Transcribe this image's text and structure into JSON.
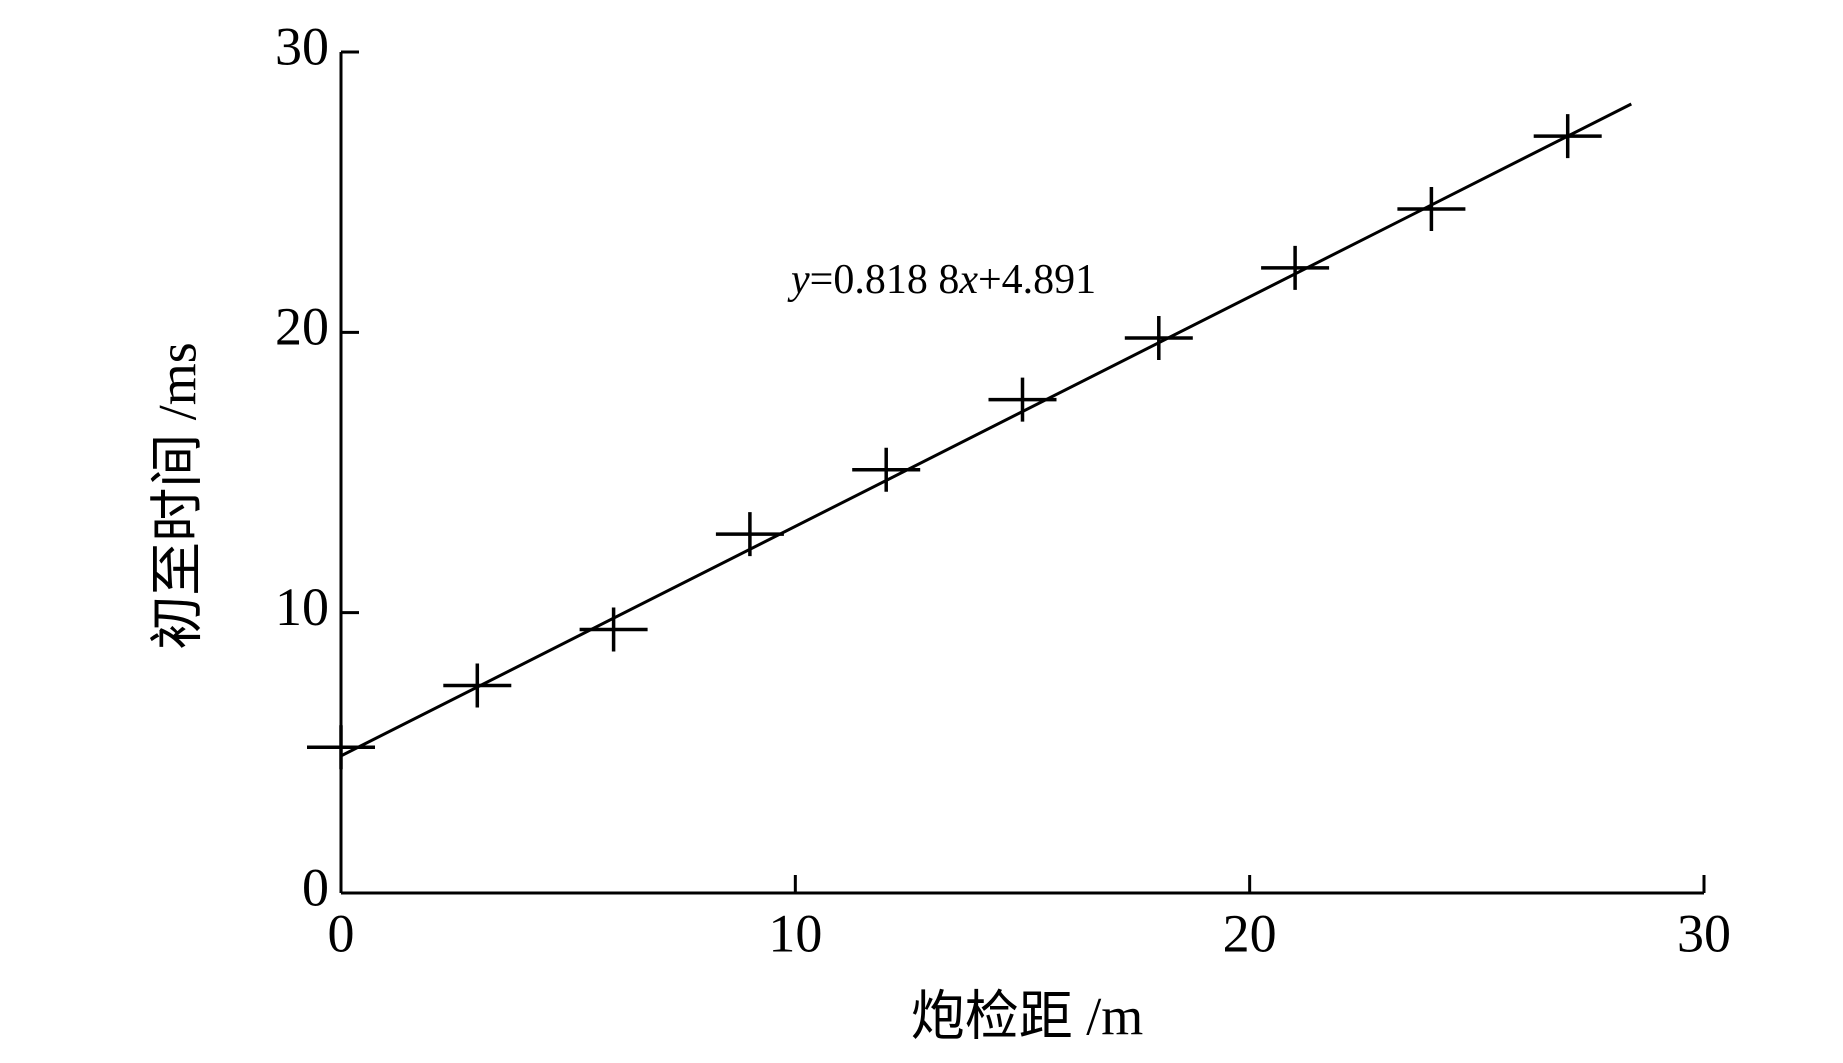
{
  "chart_data": {
    "type": "scatter",
    "x_label": "炮检距 /m",
    "y_label": "初至时间 /ms",
    "x": [
      0,
      3,
      6,
      9,
      12,
      15,
      18,
      21,
      24,
      27
    ],
    "values": [
      5.2,
      7.4,
      9.4,
      12.8,
      15.1,
      17.6,
      19.8,
      22.3,
      24.4,
      27.0
    ],
    "color": "#000000",
    "fit": {
      "slope": 0.8188,
      "intercept": 4.891,
      "x_end": 28.4
    },
    "equation": [
      {
        "text": "y",
        "italic": true
      },
      {
        "text": "=0.818 8",
        "italic": false
      },
      {
        "text": "x",
        "italic": true
      },
      {
        "text": "+4.891",
        "italic": false
      }
    ],
    "xlim": [
      0,
      30
    ],
    "xticks": [
      0,
      10,
      20,
      30
    ],
    "ylim": [
      0,
      30
    ],
    "yticks": [
      0,
      10,
      20,
      30
    ],
    "grid": false
  }
}
